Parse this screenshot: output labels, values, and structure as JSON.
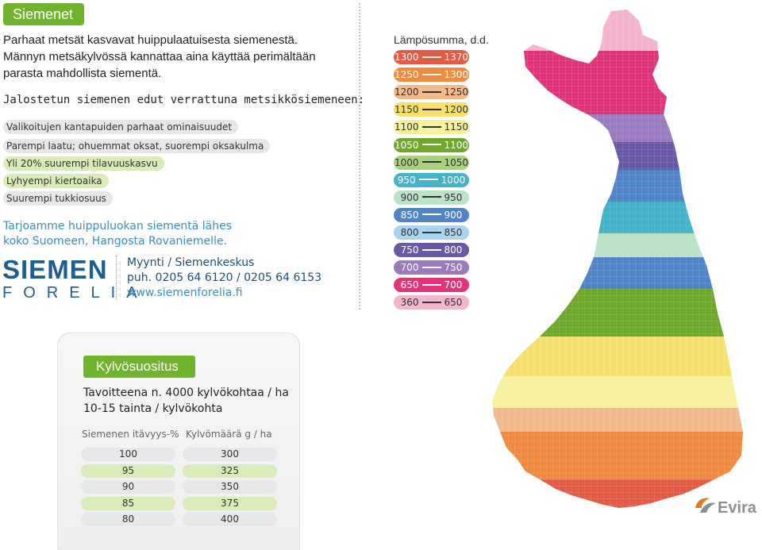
{
  "header": {
    "tag": "Siemenet"
  },
  "intro": {
    "lines": [
      "Parhaat metsät kasvavat huippulaatuisesta siemenestä.",
      "Männyn metsäkylvössä kannattaa aina käyttää perimältään",
      "parasta mahdollista siementä."
    ]
  },
  "benefits": {
    "title": "Jalostetun siemenen edut verrattuna metsikkösiemeneen:",
    "items": [
      "Valikoitujen kantapuiden parhaat ominaisuudet",
      "Parempi laatu; ohuemmat oksat, suorempi oksakulma",
      "Yli 20% suurempi tilavuuskasvu",
      "Lyhyempi kiertoaika",
      "Suurempi tukkiosuus"
    ]
  },
  "offer": {
    "lines": [
      "Tarjoamme huippuluokan siementä lähes",
      "koko Suomeen, Hangosta Rovaniemelle."
    ]
  },
  "logo": {
    "top": "SIEMEN",
    "bottom": "FORELIA"
  },
  "contact": {
    "title": "Myynti / Siemenkeskus",
    "phone": "puh. 0205 64 6120 / 0205 64 6153",
    "url": "www.siemenforelia.fi"
  },
  "legend": {
    "title": "Lämpösumma, d.d.",
    "items": [
      {
        "from": "1300",
        "to": "1370",
        "color": "#e35b45",
        "text_color": "#ffffff",
        "dash": "#ffffff"
      },
      {
        "from": "1250",
        "to": "1300",
        "color": "#f08a3e",
        "text_color": "#ffffff",
        "dash": "#ffffff"
      },
      {
        "from": "1200",
        "to": "1250",
        "color": "#f2b98c",
        "text_color": "#333333",
        "dash": "#333333"
      },
      {
        "from": "1150",
        "to": "1200",
        "color": "#f6e06b",
        "text_color": "#333333",
        "dash": "#333333"
      },
      {
        "from": "1100",
        "to": "1150",
        "color": "#f8f19c",
        "text_color": "#333333",
        "dash": "#333333"
      },
      {
        "from": "1050",
        "to": "1100",
        "color": "#6ea82a",
        "text_color": "#ffffff",
        "dash": "#ffffff"
      },
      {
        "from": "1000",
        "to": "1050",
        "color": "#a9d27a",
        "text_color": "#333333",
        "dash": "#333333"
      },
      {
        "from": "950",
        "to": "1000",
        "color": "#43b4c8",
        "text_color": "#ffffff",
        "dash": "#ffffff"
      },
      {
        "from": "900",
        "to": "950",
        "color": "#b9e2c6",
        "text_color": "#333333",
        "dash": "#333333"
      },
      {
        "from": "850",
        "to": "900",
        "color": "#4f84c9",
        "text_color": "#ffffff",
        "dash": "#ffffff"
      },
      {
        "from": "800",
        "to": "850",
        "color": "#a9d3ee",
        "text_color": "#333333",
        "dash": "#333333"
      },
      {
        "from": "750",
        "to": "800",
        "color": "#6958a6",
        "text_color": "#ffffff",
        "dash": "#ffffff"
      },
      {
        "from": "700",
        "to": "750",
        "color": "#9a7bc0",
        "text_color": "#ffffff",
        "dash": "#ffffff"
      },
      {
        "from": "650",
        "to": "700",
        "color": "#e1347c",
        "text_color": "#ffffff",
        "dash": "#ffffff"
      },
      {
        "from": "360",
        "to": "650",
        "color": "#f3b4cd",
        "text_color": "#333333",
        "dash": "#333333"
      }
    ]
  },
  "seeding": {
    "tag": "Kylvösuositus",
    "target_lines": [
      "Tavoitteena n. 4000 kylvökohtaa / ha",
      "10-15 tainta / kylvökohta"
    ],
    "columns": [
      "Siemenen itävyys-%",
      "Kylvömäärä g / ha"
    ],
    "rows": [
      [
        "100",
        "300"
      ],
      [
        "95",
        "325"
      ],
      [
        "90",
        "350"
      ],
      [
        "85",
        "375"
      ],
      [
        "80",
        "400"
      ]
    ]
  },
  "brand": {
    "evira": "Evira"
  }
}
